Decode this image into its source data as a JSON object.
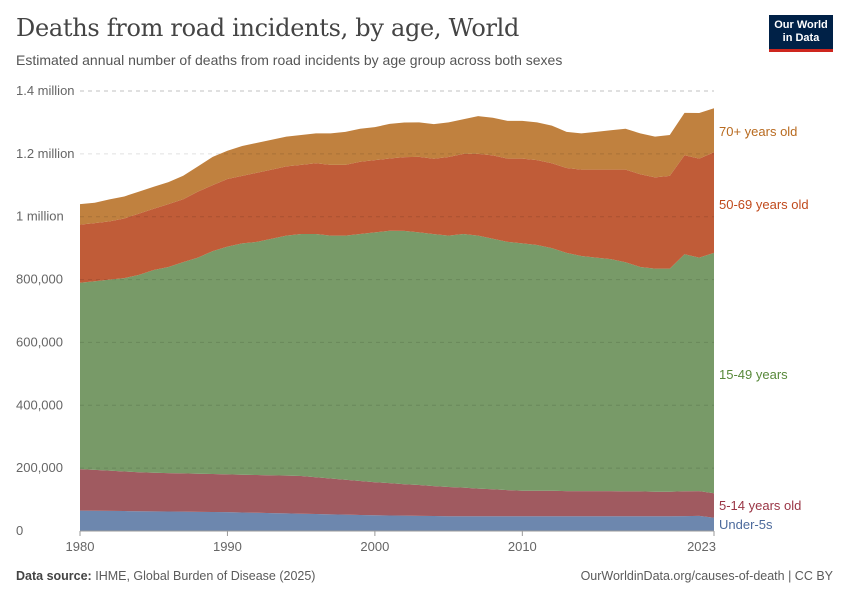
{
  "header": {
    "title": "Deaths from road incidents, by age, World",
    "subtitle": "Estimated annual number of deaths from road incidents by age group across both sexes",
    "logo_text": "Our World in Data"
  },
  "footer": {
    "source_label": "Data source:",
    "source": "IHME, Global Burden of Disease (2025)",
    "link": "OurWorldinData.org/causes-of-death | CC BY"
  },
  "chart_data": {
    "type": "area",
    "stacked": true,
    "title": "Deaths from road incidents, by age, World",
    "xlabel": "",
    "ylabel": "",
    "xlim": [
      1980,
      2023
    ],
    "ylim": [
      0,
      1400000
    ],
    "grid": true,
    "legend": "right, inline labels",
    "x_ticks": [
      "1980",
      "1990",
      "2000",
      "2010",
      "2023"
    ],
    "y_ticks": [
      "0",
      "200,000",
      "400,000",
      "600,000",
      "800,000",
      "1 million",
      "1.2 million",
      "1.4 million"
    ],
    "x": [
      1980,
      1981,
      1982,
      1983,
      1984,
      1985,
      1986,
      1987,
      1988,
      1989,
      1990,
      1991,
      1992,
      1993,
      1994,
      1995,
      1996,
      1997,
      1998,
      1999,
      2000,
      2001,
      2002,
      2003,
      2004,
      2005,
      2006,
      2007,
      2008,
      2009,
      2010,
      2011,
      2012,
      2013,
      2014,
      2015,
      2016,
      2017,
      2018,
      2019,
      2020,
      2021,
      2022,
      2023
    ],
    "series": [
      {
        "name": "Under-5s",
        "color": "#6d87ae",
        "label_color": "#4c6a9c",
        "values": [
          65000,
          64500,
          64000,
          63500,
          63000,
          62500,
          62000,
          61500,
          61000,
          60500,
          60000,
          59000,
          58000,
          57000,
          56000,
          55000,
          54000,
          53000,
          52000,
          51000,
          50000,
          49400,
          48800,
          48200,
          47600,
          47000,
          47000,
          47000,
          47000,
          47000,
          47000,
          47000,
          47000,
          47000,
          47000,
          47000,
          47000,
          47000,
          47000,
          47000,
          47000,
          47500,
          48000,
          42000
        ]
      },
      {
        "name": "5-14 years old",
        "color": "#a05a60",
        "label_color": "#9a3545",
        "values": [
          132000,
          130000,
          128000,
          126000,
          124000,
          123000,
          122000,
          122000,
          121000,
          121000,
          120000,
          120000,
          120000,
          120000,
          120000,
          120000,
          117000,
          114000,
          111000,
          108000,
          105000,
          103000,
          100000,
          98000,
          95000,
          93000,
          91000,
          88000,
          86000,
          83000,
          81000,
          81000,
          81000,
          80000,
          80000,
          80000,
          80000,
          79000,
          79000,
          78000,
          78000,
          79000,
          79000,
          78000
        ]
      },
      {
        "name": "15-49 years",
        "color": "#789a68",
        "label_color": "#58893a",
        "values": [
          593000,
          600000,
          608000,
          615000,
          628000,
          645000,
          656000,
          672000,
          688000,
          709000,
          725000,
          736000,
          742000,
          753000,
          764000,
          770000,
          774000,
          773000,
          777000,
          786000,
          795000,
          803000,
          806000,
          804000,
          802000,
          800000,
          807000,
          805000,
          797000,
          790000,
          787000,
          782000,
          772000,
          758000,
          748000,
          743000,
          738000,
          729000,
          714000,
          710000,
          710000,
          754000,
          743000,
          765000
        ]
      },
      {
        "name": "50-69 years old",
        "color": "#c05c38",
        "label_color": "#c04a1c",
        "values": [
          185000,
          185000,
          185000,
          190000,
          195000,
          195000,
          200000,
          200000,
          210000,
          210000,
          215000,
          215000,
          220000,
          220000,
          220000,
          220000,
          225000,
          225000,
          225000,
          230000,
          230000,
          230000,
          235000,
          240000,
          240000,
          250000,
          255000,
          260000,
          265000,
          265000,
          270000,
          270000,
          270000,
          270000,
          275000,
          280000,
          285000,
          295000,
          295000,
          290000,
          295000,
          315000,
          315000,
          320000
        ]
      },
      {
        "name": "70+ years old",
        "color": "#c0813f",
        "label_color": "#b86a1f",
        "values": [
          65000,
          65000,
          70000,
          70000,
          70000,
          70000,
          70000,
          75000,
          80000,
          90000,
          90000,
          95000,
          95000,
          95000,
          95000,
          95000,
          95000,
          100000,
          105000,
          105000,
          105000,
          110000,
          110000,
          110000,
          110000,
          110000,
          110000,
          120000,
          120000,
          120000,
          120000,
          120000,
          120000,
          115000,
          115000,
          120000,
          125000,
          130000,
          130000,
          130000,
          130000,
          135000,
          145000,
          140000
        ]
      }
    ]
  }
}
